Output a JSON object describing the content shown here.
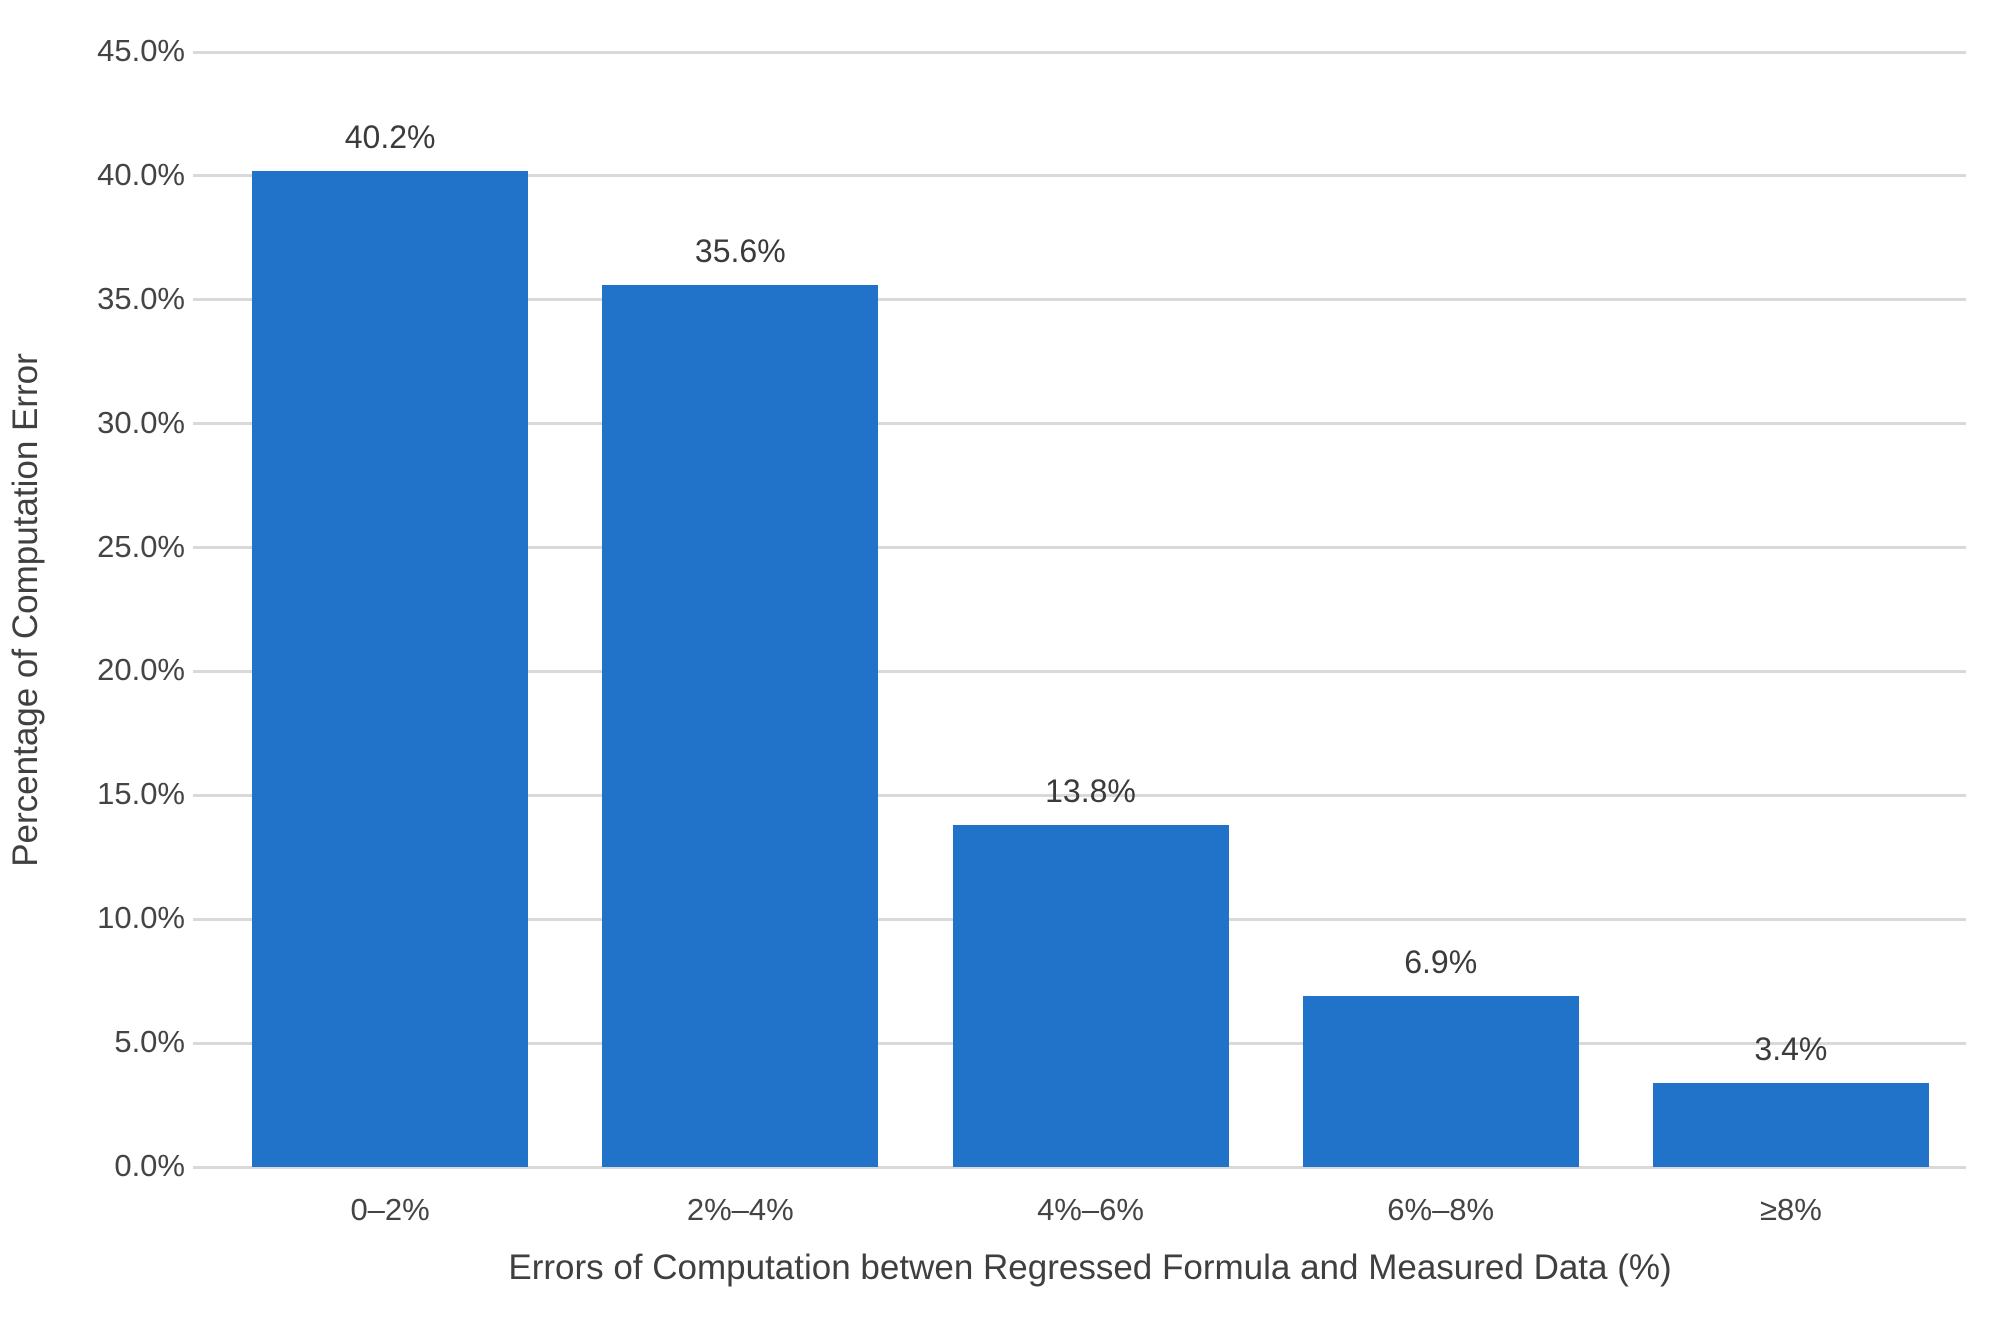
{
  "chart_data": {
    "type": "bar",
    "categories": [
      "0–2%",
      "2%–4%",
      "4%–6%",
      "6%–8%",
      "≥8%"
    ],
    "values": [
      40.2,
      35.6,
      13.8,
      6.9,
      3.4
    ],
    "data_labels": [
      "40.2%",
      "35.6%",
      "13.8%",
      "6.9%",
      "3.4%"
    ],
    "xlabel": "Errors of Computation betwen Regressed Formula and Measured Data (%)",
    "ylabel": "Percentage of Computation Error",
    "ylim": [
      0,
      45
    ],
    "ytick_step": 5,
    "ytick_labels": [
      "45.0%",
      "40.0%",
      "35.0%",
      "30.0%",
      "25.0%",
      "20.0%",
      "15.0%",
      "10.0%",
      "5.0%",
      "0.0%"
    ],
    "grid": "horizontal",
    "legend": "none",
    "colors": {
      "bar": "#2073c8",
      "gridline": "#d9d9d9",
      "tick_text": "#444444",
      "axis_title_text": "#3f3f3f",
      "data_label_text": "#3b3b3b",
      "background": "#ffffff"
    }
  }
}
